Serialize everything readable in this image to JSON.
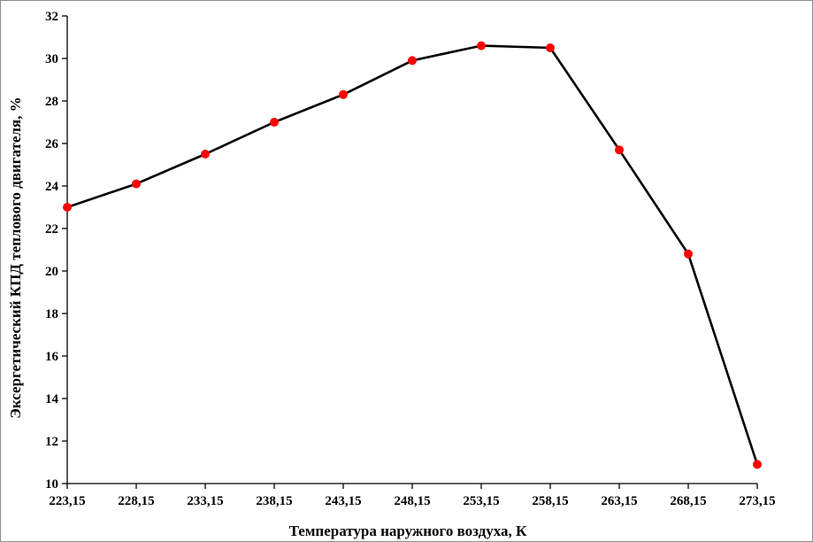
{
  "chart_data": {
    "type": "line",
    "title": "",
    "xlabel": "Температура наружного воздуха, К",
    "ylabel": "Эксергетический КПД теплового двигателя, %",
    "categories": [
      "223,15",
      "228,15",
      "233,15",
      "238,15",
      "243,15",
      "248,15",
      "253,15",
      "258,15",
      "263,15",
      "268,15",
      "273,15"
    ],
    "y_ticks": [
      "10",
      "12",
      "14",
      "16",
      "18",
      "20",
      "22",
      "24",
      "26",
      "28",
      "30",
      "32"
    ],
    "ylim": [
      10,
      32
    ],
    "grid": false,
    "legend": "none",
    "series": [
      {
        "values": [
          23.0,
          24.1,
          25.5,
          27.0,
          28.3,
          29.9,
          30.6,
          30.5,
          25.7,
          20.8,
          10.9
        ]
      }
    ],
    "colors": {
      "line": "#000000",
      "marker": "#ff0000",
      "axis": "#000000"
    }
  }
}
